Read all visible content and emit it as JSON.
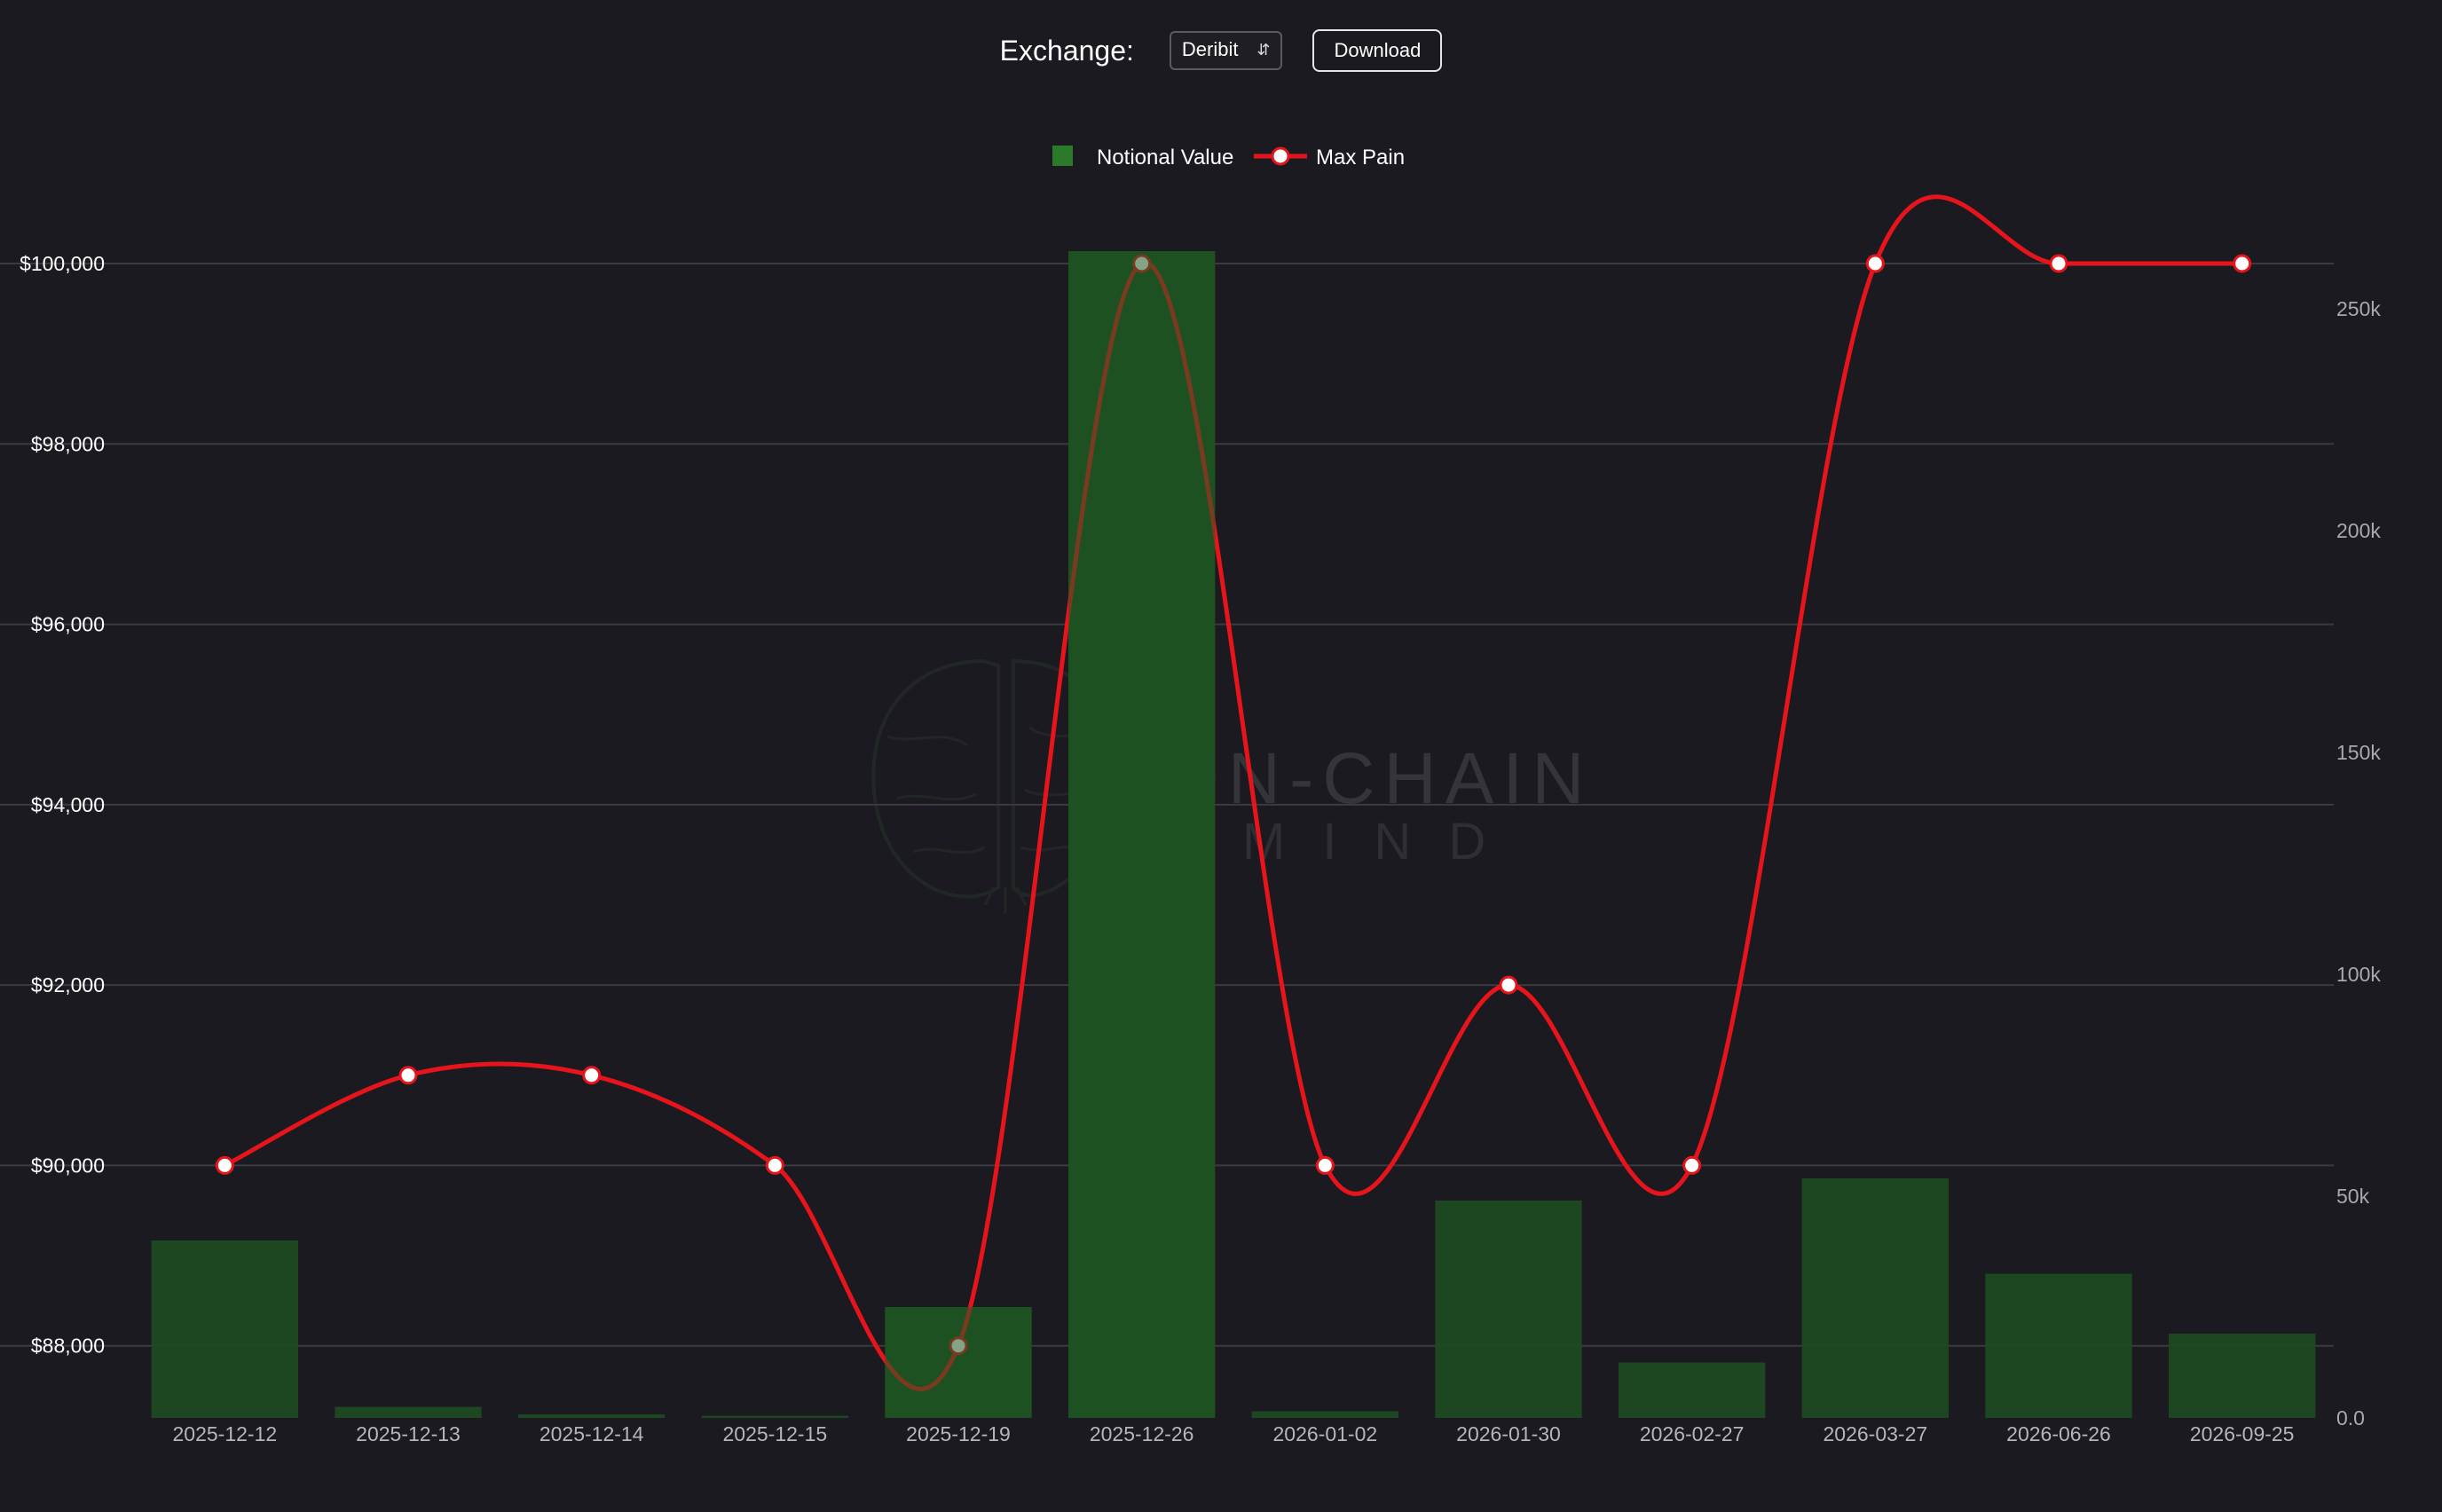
{
  "toolbar": {
    "exchange_label": "Exchange:",
    "exchange_value": "Deribit",
    "download_label": "Download"
  },
  "watermark": {
    "line1": "ON-CHAIN",
    "line2": "MIND"
  },
  "colors": {
    "background": "#1b1a20",
    "bar": "#1d4a22",
    "legend_bar": "#2b7a2b",
    "line": "#e8141c",
    "grid": "#3a3a40"
  },
  "chart_data": {
    "type": "bar",
    "categories": [
      "2025-12-12",
      "2025-12-13",
      "2025-12-14",
      "2025-12-15",
      "2025-12-19",
      "2025-12-26",
      "2026-01-02",
      "2026-01-30",
      "2026-02-27",
      "2026-03-27",
      "2026-06-26",
      "2026-09-25"
    ],
    "series": [
      {
        "name": "Notional Value",
        "type": "bar",
        "axis": "right",
        "values": [
          40000,
          2500,
          800,
          500,
          25000,
          263000,
          1500,
          49000,
          12500,
          54000,
          32500,
          19000
        ]
      },
      {
        "name": "Max Pain",
        "type": "line",
        "axis": "left",
        "values": [
          90000,
          91000,
          91000,
          90000,
          88000,
          100000,
          90000,
          92000,
          90000,
          100000,
          100000,
          100000
        ]
      }
    ],
    "y_left": {
      "ticks": [
        "$88,000",
        "$90,000",
        "$92,000",
        "$94,000",
        "$96,000",
        "$98,000",
        "$100,000"
      ],
      "tick_values": [
        88000,
        90000,
        92000,
        94000,
        96000,
        98000,
        100000
      ],
      "min": 87200,
      "max": 100000
    },
    "y_right": {
      "ticks": [
        "0.0",
        "50k",
        "100k",
        "150k",
        "200k",
        "250k"
      ],
      "tick_values": [
        0,
        50000,
        100000,
        150000,
        200000,
        250000
      ],
      "min": 0,
      "max": 250000
    },
    "grid": true,
    "legend_position": "top-center"
  }
}
